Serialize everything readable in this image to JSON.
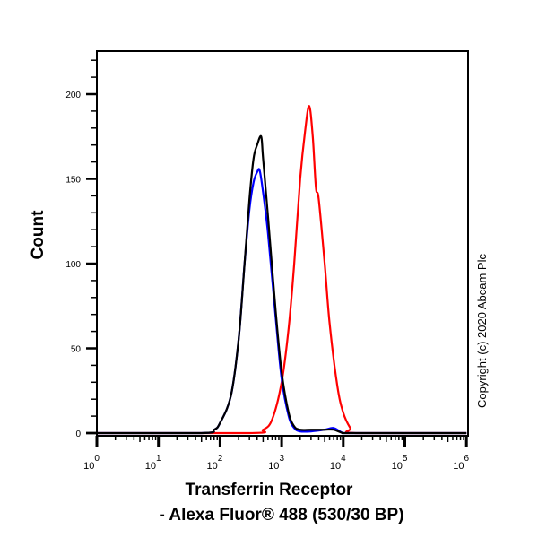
{
  "chart_data": {
    "type": "line",
    "title": "",
    "xlabel": "Transferrin Receptor - Alexa Fluor® 488 (530/30 BP)",
    "xlabel_lines": [
      "Transferrin Receptor",
      "- Alexa Fluor® 488 (530/30 BP)"
    ],
    "ylabel": "Count",
    "xscale": "log",
    "xlim": [
      1,
      1000000
    ],
    "ylim": [
      0,
      220
    ],
    "x_ticks": [
      {
        "base": "10",
        "exp": "0"
      },
      {
        "base": "10",
        "exp": "1"
      },
      {
        "base": "10",
        "exp": "2"
      },
      {
        "base": "10",
        "exp": "3"
      },
      {
        "base": "10",
        "exp": "4"
      },
      {
        "base": "10",
        "exp": "5"
      },
      {
        "base": "10",
        "exp": "6"
      }
    ],
    "y_ticks": [
      "0",
      "50",
      "100",
      "150",
      "200"
    ],
    "grid": false,
    "legend": null,
    "annotation": "Copyright (c) 2020 Abcam Plc",
    "series": [
      {
        "name": "black",
        "color": "#000000",
        "x": [
          1,
          50,
          80,
          100,
          150,
          200,
          250,
          300,
          350,
          400,
          465,
          500,
          600,
          800,
          1000,
          1300,
          1600,
          2000,
          3000,
          5000,
          7000,
          10000,
          15000,
          1000000
        ],
        "y": [
          0,
          0,
          2,
          6,
          22,
          55,
          100,
          138,
          162,
          170,
          175,
          162,
          128,
          72,
          36,
          12,
          4,
          2,
          2,
          2,
          2,
          0,
          0,
          0
        ]
      },
      {
        "name": "blue",
        "color": "#0000ff",
        "x": [
          1,
          50,
          80,
          100,
          150,
          200,
          250,
          300,
          350,
          400,
          440,
          500,
          600,
          800,
          1000,
          1300,
          1600,
          2000,
          3000,
          5000,
          7000,
          10000,
          15000,
          1000000
        ],
        "y": [
          0,
          0,
          2,
          6,
          22,
          55,
          100,
          132,
          148,
          154,
          155,
          142,
          118,
          68,
          32,
          10,
          3,
          1,
          1,
          2,
          3,
          0,
          0,
          0
        ]
      },
      {
        "name": "red",
        "color": "#ff0000",
        "x": [
          1,
          300,
          500,
          700,
          1000,
          1300,
          1600,
          2000,
          2400,
          2800,
          3200,
          3600,
          4000,
          5000,
          6000,
          8000,
          10000,
          13000,
          16000,
          1000000
        ],
        "y": [
          0,
          0,
          2,
          8,
          30,
          62,
          100,
          150,
          178,
          193,
          175,
          145,
          138,
          100,
          65,
          28,
          12,
          3,
          0,
          0
        ]
      }
    ]
  }
}
